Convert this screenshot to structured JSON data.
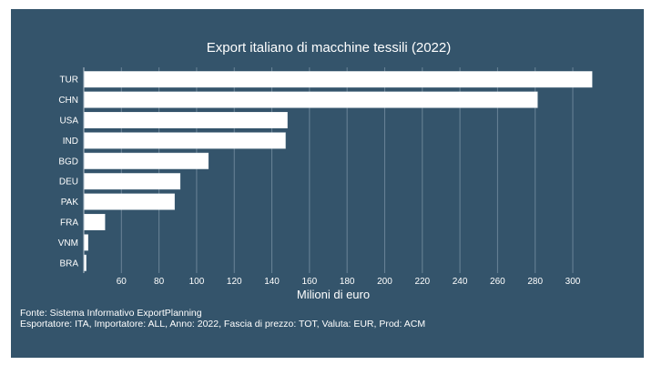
{
  "chart_data": {
    "type": "bar",
    "orientation": "horizontal",
    "title": "Export italiano di macchine tessili (2022)",
    "xlabel": "Milioni di euro",
    "ylabel": "",
    "categories": [
      "TUR",
      "CHN",
      "USA",
      "IND",
      "BGD",
      "DEU",
      "PAK",
      "FRA",
      "VNM",
      "BRA"
    ],
    "values": [
      310,
      281,
      148,
      147,
      106,
      91,
      88,
      51,
      42,
      41
    ],
    "xlim": [
      40,
      315
    ],
    "xticks": [
      60,
      80,
      100,
      120,
      140,
      160,
      180,
      200,
      220,
      240,
      260,
      280,
      300
    ],
    "grid": true,
    "colors": {
      "background": "#34546b",
      "bar": "#ffffff",
      "text": "#ffffff"
    }
  },
  "footer": {
    "source": "Fonte: Sistema Informativo ExportPlanning",
    "note": "Esportatore: ITA, Importatore: ALL, Anno: 2022, Fascia di prezzo: TOT, Valuta: EUR, Prod: ACM"
  }
}
